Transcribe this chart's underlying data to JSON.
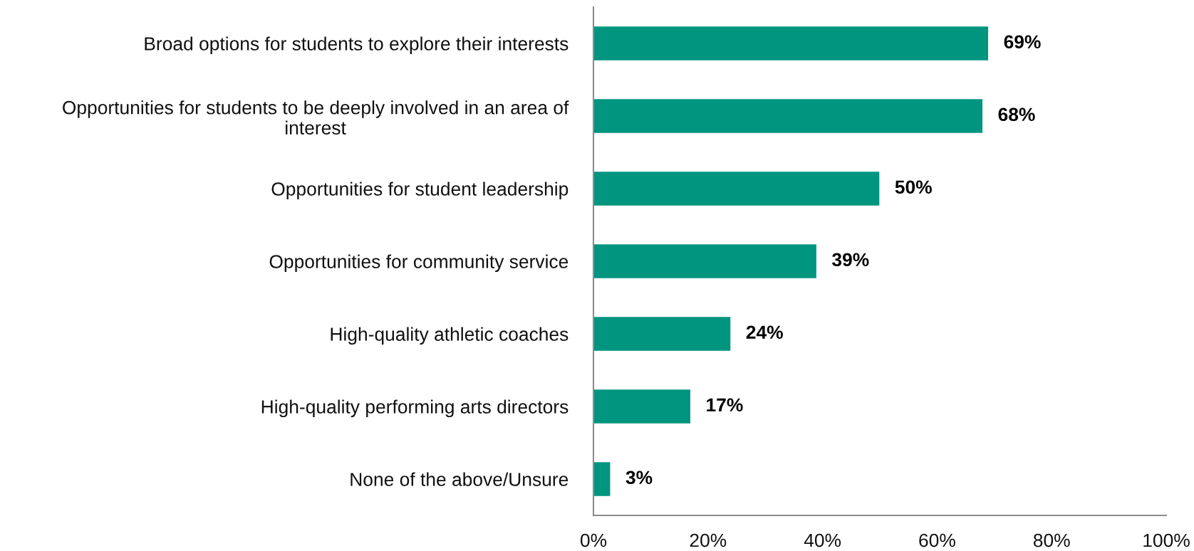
{
  "chart_data": {
    "type": "bar",
    "orientation": "horizontal",
    "categories": [
      "Broad options for students to explore their interests",
      "Opportunities for students to be deeply involved in an area of\ninterest",
      "Opportunities for student leadership",
      "Opportunities for community service",
      "High-quality athletic coaches",
      "High-quality performing arts directors",
      "None of the above/Unsure"
    ],
    "values": [
      69,
      68,
      50,
      39,
      24,
      17,
      3
    ],
    "value_labels": [
      "69%",
      "68%",
      "50%",
      "39%",
      "24%",
      "17%",
      "3%"
    ],
    "color": "#00957f",
    "xlim": [
      0,
      100
    ],
    "xticks": [
      {
        "value": 0,
        "label": "0%"
      },
      {
        "value": 20,
        "label": "20%"
      },
      {
        "value": 40,
        "label": "40%"
      },
      {
        "value": 60,
        "label": "60%"
      },
      {
        "value": 80,
        "label": "80%"
      },
      {
        "value": 100,
        "label": "100%"
      }
    ],
    "grid": false
  }
}
